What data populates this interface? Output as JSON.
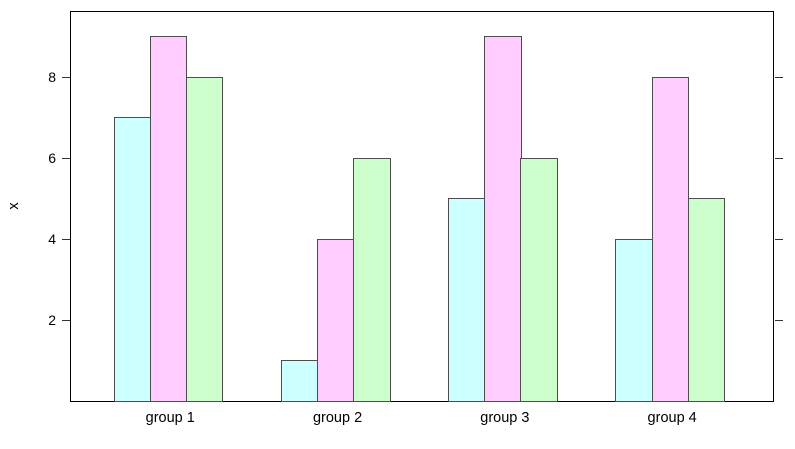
{
  "chart_data": {
    "type": "bar",
    "grouped": true,
    "title": "",
    "xlabel": "",
    "ylabel": "x",
    "categories": [
      "group 1",
      "group 2",
      "group 3",
      "group 4"
    ],
    "series": [
      {
        "name": "cyan",
        "color": "#CCFFFF",
        "values": [
          7,
          1,
          5,
          4
        ]
      },
      {
        "name": "pink",
        "color": "#FFCCFF",
        "values": [
          9,
          4,
          9,
          8
        ]
      },
      {
        "name": "green",
        "color": "#CCFFCC",
        "values": [
          8,
          6,
          6,
          5
        ]
      }
    ],
    "yticks": [
      2,
      4,
      6,
      8
    ],
    "ylim": [
      0,
      9.6
    ],
    "grid": false,
    "legend": "none",
    "tick_sides": [
      "left",
      "right"
    ],
    "bar_border_color": "#4d4d4d",
    "axis_color": "#000000",
    "background_color": "#ffffff"
  }
}
